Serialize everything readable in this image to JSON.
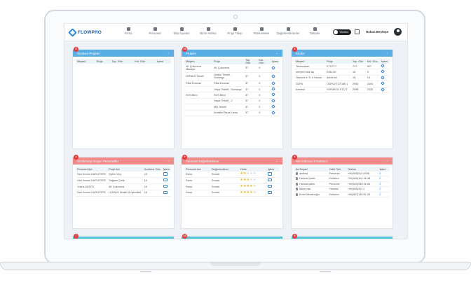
{
  "navbar": {
    "logo": "FLOWPRO",
    "items": [
      {
        "label": "Firma",
        "icon": "building-icon"
      },
      {
        "label": "Personel",
        "icon": "person-icon"
      },
      {
        "label": "Ekip Üyeleri",
        "icon": "team-icon"
      },
      {
        "label": "Birim Atama",
        "icon": "assign-icon"
      },
      {
        "label": "Proje Takip",
        "icon": "calendar-icon"
      },
      {
        "label": "Planlamalar",
        "icon": "clock-icon"
      },
      {
        "label": "Değerlendirmeler",
        "icon": "star-icon"
      },
      {
        "label": "Talepler",
        "icon": "document-icon"
      }
    ],
    "toggle_label": "Yönetim",
    "user_name": "Hakan Beştepe"
  },
  "panels": {
    "geciken": {
      "badge": "5",
      "title": "Geciken Projeler",
      "columns": [
        "Müşteri",
        "Proje",
        "Top. Gün",
        "Kal. Gün",
        "İşlem"
      ],
      "rows": []
    },
    "projeler": {
      "badge": "10",
      "title": "Projeler",
      "columns": [
        "Müşteri",
        "Proje",
        "Top. Gün",
        "Kal. Gün",
        "İşlem"
      ],
      "rows": [
        {
          "musteri": "4K Çukurova Malatya",
          "proje": "4K Çukurova",
          "top": "37",
          "kal": "0"
        },
        {
          "musteri": "LEFAKS Tekstil",
          "proje": "Lefaks Tekstil - Domingo",
          "top": "37",
          "kal": "0"
        },
        {
          "musteri": "Rifat Durmaz",
          "proje": "Rifat Durmaz",
          "top": "37",
          "kal": "0"
        },
        {
          "musteri": "",
          "proje": "Yaşar Tekstil - Domingo",
          "top": "37",
          "kal": "0"
        },
        {
          "musteri": "SVS Büro",
          "proje": "SVS Büro",
          "top": "37",
          "kal": "0"
        },
        {
          "musteri": "",
          "proje": "Yaşar Tekstil - 2",
          "top": "37",
          "kal": "0"
        },
        {
          "musteri": "",
          "proje": "MQ Tekstil",
          "top": "37",
          "kal": "0"
        },
        {
          "musteri": "",
          "proje": "Amelita Plaza Kamu",
          "top": "37",
          "kal": "0"
        }
      ]
    },
    "etutler": {
      "badge": "6",
      "title": "Etütler",
      "columns": [
        "Müşteri",
        "Proje",
        "Top. Gün",
        "Kal. Gün",
        "İşlem"
      ],
      "rows": [
        {
          "musteri": "Teknoloban",
          "proje": "ETÜT77",
          "top": "747",
          "kal": "827"
        },
        {
          "musteri": "meryem akk aş",
          "proje": "B BLOK",
          "top": "16",
          "kal": "9"
        },
        {
          "musteri": "Harmes In Tr e House",
          "proje": "demirme",
          "top": "18",
          "kal": "18"
        },
        {
          "musteri": "ÖZPA",
          "proje": "ÖZPA ETÜT185 1",
          "top": "2954",
          "kal": "2404"
        },
        {
          "musteri": "Karakol",
          "proje": "KARAKOL ETÜ T",
          "top": "2598",
          "kal": "2426"
        }
      ]
    },
    "gecikmeye": {
      "badge": "4",
      "title": "Gecikmeye Düşen Personeller",
      "columns": [
        "Personel Adı",
        "Proje Adı",
        "Gecikme Gün",
        "İşlem"
      ],
      "rows": [
        {
          "personel": "Nuri Kerem KAR ATEPE",
          "proje": "Şahin Vinç",
          "gun": "18"
        },
        {
          "personel": "Nuri Kerem KAR ATEPE",
          "proje": "Sağlam Çelik",
          "gun": "18"
        },
        {
          "personel": "Yunus AKSOY",
          "proje": "4K Çukurova",
          "gun": "18"
        },
        {
          "personel": "Nuri Kerem KAR ATEPE",
          "proje": "LEFAKS Tekstil M üşteriillet",
          "gun": "18"
        }
      ]
    },
    "degerlendirme": {
      "badge": "9",
      "title": "Personel Değerlendirme",
      "columns": [
        "Personel Adı",
        "Değerlendiren",
        "Yıldız",
        "İşlem"
      ],
      "rows": [
        {
          "personel": "Rana",
          "degerlendiren": "Emrah",
          "stars": 2
        },
        {
          "personel": "Rana",
          "degerlendiren": "Emrah",
          "stars": 3
        },
        {
          "personel": "Rana",
          "degerlendiren": "Emrah",
          "stars": 4
        },
        {
          "personel": "Rana",
          "degerlendiren": "Emrah",
          "stars": 4
        }
      ]
    },
    "sonkayit": {
      "badge": "6",
      "title": "Son Kâhrası 5 Kullanıcı",
      "columns": [
        "Ad Soyad",
        "Yetki Türü",
        "Telefon",
        "İşlem"
      ],
      "rows": [
        {
          "ad": "asaksa",
          "yetki": "Personel",
          "telefon": "+90(555)910 5036"
        },
        {
          "ad": "Hamza Şahin",
          "yetki": "Kullanıcı",
          "telefon": "+90(545)104 46 48"
        },
        {
          "ad": "Hamza şahin",
          "yetki": "Personel",
          "telefon": "+90(543)945 46 64"
        },
        {
          "ad": "Müşri esk",
          "yetki": "Yönetici",
          "telefon": "+90(555)321 1"
        },
        {
          "ad": "Emre Mirzahoğlu",
          "yetki": "Kullanıcı",
          "telefon": "+90(507)145 81 05"
        }
      ]
    },
    "bottom_badges": [
      "7",
      "10",
      "9"
    ]
  },
  "colors": {
    "blue_header": "#5aaee6",
    "red_header": "#f08a8a",
    "teal_header": "#52c6d8",
    "badge": "#e4363b"
  }
}
